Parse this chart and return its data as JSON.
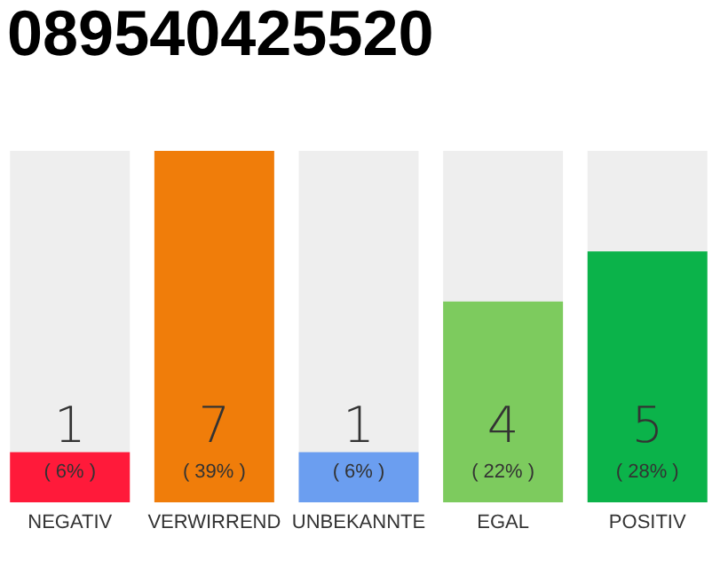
{
  "chart_data": {
    "type": "bar",
    "title": "089540425520",
    "categories": [
      "NEGATIV",
      "VERWIRREND",
      "UNBEKANNTE",
      "EGAL",
      "POSITIV"
    ],
    "values": [
      1,
      7,
      1,
      4,
      5
    ],
    "colors": [
      "#ff1a3a",
      "#f07d0a",
      "#6b9ef0",
      "#7dcb5e",
      "#0bb34a"
    ],
    "ylim": [
      0,
      7
    ],
    "data_labels": true,
    "annotations": [
      "( 6% )",
      "( 39% )",
      "( 6% )",
      "( 22% )",
      "( 28% )"
    ]
  }
}
